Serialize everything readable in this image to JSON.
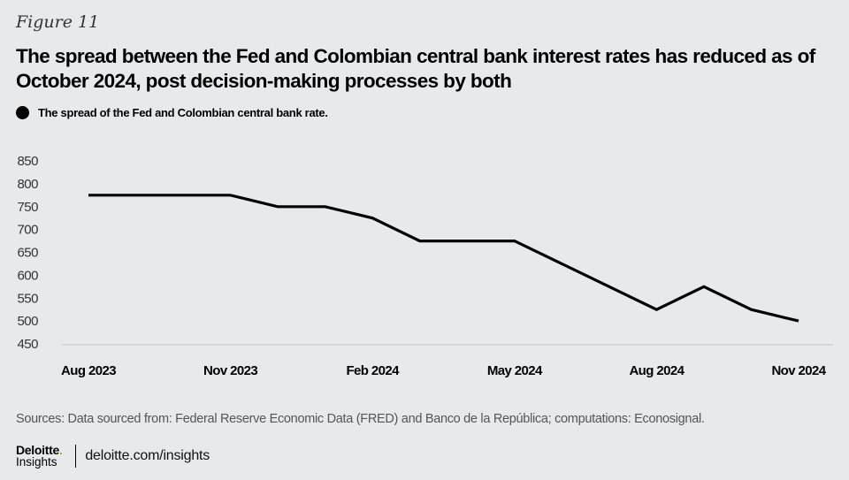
{
  "figure_label": "Figure 11",
  "title": "The spread between the Fed and Colombian central bank interest rates has reduced as of October 2024, post decision-making processes by both",
  "legend": {
    "label": "The spread of the Fed and Colombian central bank rate.",
    "color": "#000000"
  },
  "source": "Sources: Data sourced from: Federal Reserve Economic Data (FRED) and Banco de la República; computations: Econosignal.",
  "footer": {
    "logo_main": "Deloitte",
    "logo_dot": ".",
    "logo_sub": "Insights",
    "site": "deloitte.com/insights"
  },
  "chart_data": {
    "type": "line",
    "title": "The spread between the Fed and Colombian central bank interest rates has reduced as of October 2024, post decision-making processes by both",
    "xlabel": "",
    "ylabel": "",
    "x": [
      "Aug 2023",
      "Sep 2023",
      "Oct 2023",
      "Nov 2023",
      "Dec 2023",
      "Jan 2024",
      "Feb 2024",
      "Mar 2024",
      "Apr 2024",
      "May 2024",
      "Jun 2024",
      "Jul 2024",
      "Aug 2024",
      "Sep 2024",
      "Oct 2024",
      "Nov 2024"
    ],
    "x_tick_labels": [
      "Aug 2023",
      "Nov 2023",
      "Feb 2024",
      "May 2024",
      "Aug 2024",
      "Nov 2024"
    ],
    "series": [
      {
        "name": "The spread of the Fed and Colombian central bank rate.",
        "color": "#000000",
        "values": [
          775,
          775,
          775,
          775,
          750,
          750,
          725,
          675,
          675,
          675,
          625,
          575,
          525,
          575,
          525,
          500
        ]
      }
    ],
    "yticks": [
      850,
      800,
      750,
      700,
      650,
      600,
      550,
      500,
      450
    ],
    "ylim": [
      450,
      850
    ],
    "grid": false,
    "legend_position": "top-left"
  }
}
